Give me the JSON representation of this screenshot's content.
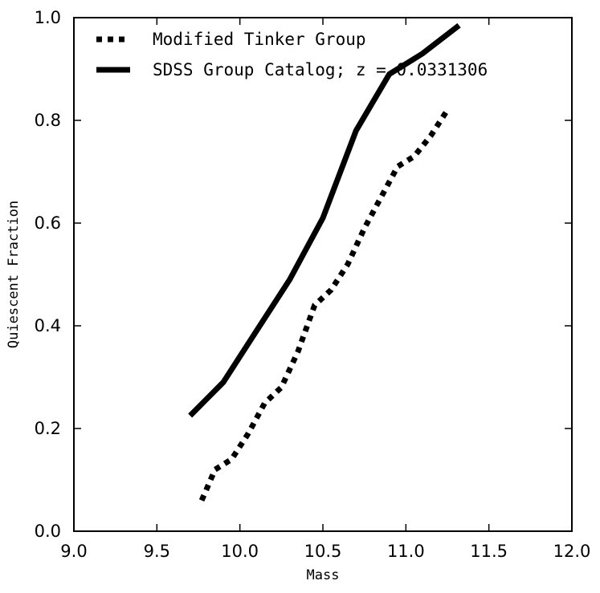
{
  "chart_data": {
    "type": "line",
    "xlabel": "Mass",
    "ylabel": "Quiescent Fraction",
    "xlim": [
      9.0,
      12.0
    ],
    "ylim": [
      0.0,
      1.0
    ],
    "xticks": [
      "9.0",
      "9.5",
      "10.0",
      "10.5",
      "11.0",
      "11.5",
      "12.0"
    ],
    "yticks": [
      "0.0",
      "0.2",
      "0.4",
      "0.6",
      "0.8",
      "1.0"
    ],
    "grid": false,
    "legend_position": "top-left",
    "series": [
      {
        "name": "Modified Tinker Group",
        "style": "dotted",
        "color": "#000000",
        "x": [
          9.77,
          9.85,
          9.95,
          10.05,
          10.15,
          10.25,
          10.35,
          10.45,
          10.55,
          10.65,
          10.75,
          10.85,
          10.95,
          11.05,
          11.15,
          11.25
        ],
        "y": [
          0.06,
          0.12,
          0.14,
          0.19,
          0.25,
          0.28,
          0.35,
          0.44,
          0.47,
          0.52,
          0.59,
          0.65,
          0.71,
          0.73,
          0.77,
          0.82
        ]
      },
      {
        "name": "SDSS Group Catalog; z = 0.0331306",
        "style": "solid",
        "color": "#000000",
        "x": [
          9.7,
          9.9,
          10.1,
          10.3,
          10.5,
          10.7,
          10.9,
          11.1,
          11.32
        ],
        "y": [
          0.225,
          0.29,
          0.39,
          0.49,
          0.61,
          0.78,
          0.89,
          0.93,
          0.985
        ]
      }
    ]
  }
}
